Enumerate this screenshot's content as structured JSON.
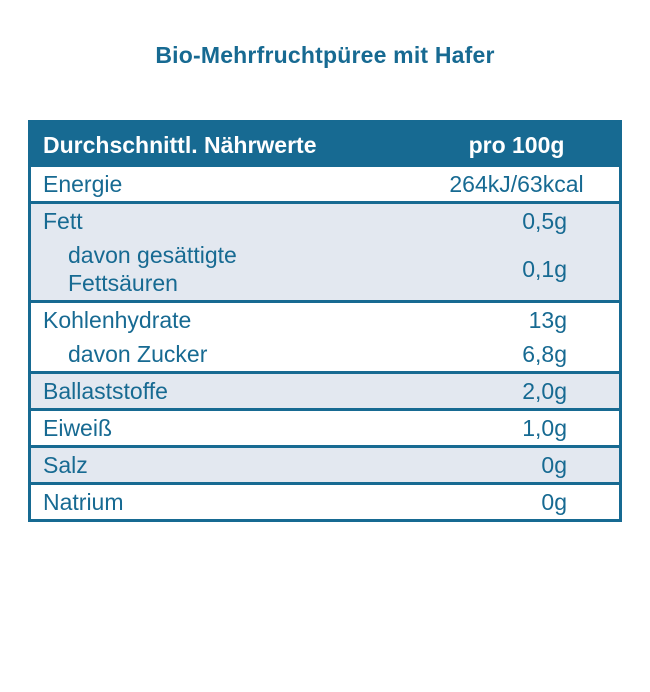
{
  "title": "Bio-Mehrfruchtpüree mit Hafer",
  "table": {
    "header": {
      "label": "Durchschnittl. Nährwerte",
      "unit": "pro 100g"
    },
    "groups": [
      {
        "rows": [
          {
            "label": "Energie",
            "value": "264kJ/63kcal"
          }
        ]
      },
      {
        "rows": [
          {
            "label": "Fett",
            "value": "0,5g"
          },
          {
            "label": "davon gesättigte\nFettsäuren",
            "value": "0,1g"
          }
        ]
      },
      {
        "rows": [
          {
            "label": "Kohlenhydrate",
            "value": "13g"
          },
          {
            "label": "davon Zucker",
            "value": "6,8g"
          }
        ]
      },
      {
        "rows": [
          {
            "label": "Ballaststoffe",
            "value": "2,0g"
          }
        ]
      },
      {
        "rows": [
          {
            "label": "Eiweiß",
            "value": "1,0g"
          }
        ]
      },
      {
        "rows": [
          {
            "label": "Salz",
            "value": "0g"
          }
        ]
      },
      {
        "rows": [
          {
            "label": "Natrium",
            "value": "0g"
          }
        ]
      }
    ]
  },
  "colors": {
    "teal": "#176a92",
    "row_alt": "#e3e8f0",
    "text_on_teal": "#ffffff"
  }
}
